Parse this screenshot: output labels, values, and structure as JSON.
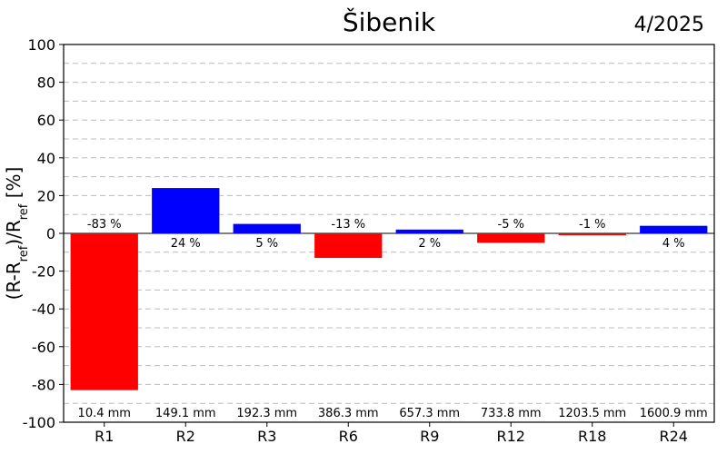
{
  "chart_data": {
    "type": "bar",
    "title": "Šibenik",
    "date": "4/2025",
    "ylabel": {
      "parts": [
        "(R-R",
        "ref",
        ")/R",
        "ref",
        " [%]"
      ]
    },
    "ylim": [
      -100,
      100
    ],
    "yticks": [
      100,
      80,
      60,
      40,
      20,
      0,
      -20,
      -40,
      -60,
      -80,
      -100
    ],
    "grid": true,
    "positive_color": "#0000ff",
    "negative_color": "#ff0000",
    "categories": [
      "R1",
      "R2",
      "R3",
      "R6",
      "R9",
      "R12",
      "R18",
      "R24"
    ],
    "values": [
      -83,
      24,
      5,
      -13,
      2,
      -5,
      -1,
      4
    ],
    "value_labels": [
      "-83 %",
      "24 %",
      "5 %",
      "-13 %",
      "2 %",
      "-5 %",
      "-1 %",
      "4 %"
    ],
    "amounts": [
      "10.4 mm",
      "149.1 mm",
      "192.3 mm",
      "386.3 mm",
      "657.3 mm",
      "733.8 mm",
      "1203.5 mm",
      "1600.9 mm"
    ]
  }
}
